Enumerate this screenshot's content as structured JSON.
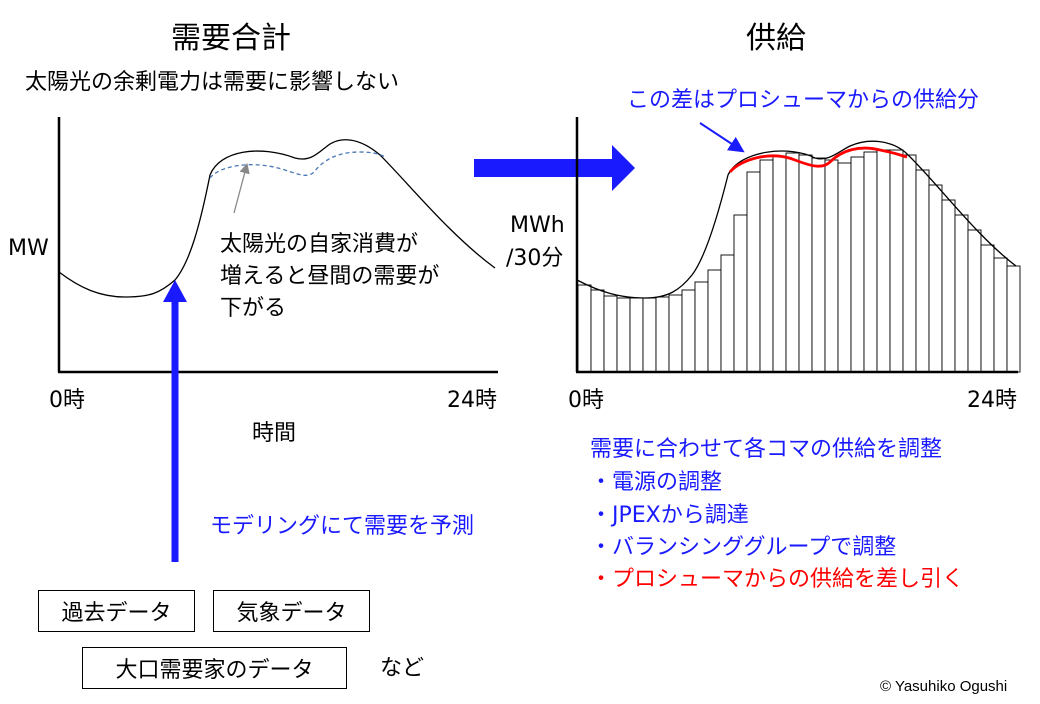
{
  "left_panel": {
    "title": "需要合計",
    "subtitle": "太陽光の余剰電力は需要に影響しない",
    "y_label": "MW",
    "x_start": "0時",
    "x_end": "24時",
    "x_label": "時間",
    "annotation": [
      "太陽光の自家消費が",
      "増えると昼間の需要が",
      "下がる"
    ]
  },
  "right_panel": {
    "title": "供給",
    "y_label_line1": "MWh",
    "y_label_line2": "/30分",
    "x_start": "0時",
    "x_end": "24時",
    "annotation": "この差はプロシューマからの供給分"
  },
  "forecast_label": "モデリングにて需要を予測",
  "data_sources": [
    "過去データ",
    "気象データ",
    "大口需要家のデータ"
  ],
  "data_sources_suffix": "など",
  "supply_notes": {
    "heading": "需要に合わせて各コマの供給を調整",
    "items": [
      "・電源の調整",
      "・JPEXから調達",
      "・バランシンググループで調整"
    ],
    "highlight": "・プロシューマからの供給を差し引く"
  },
  "copyright": "© Yasuhiko Ogushi",
  "colors": {
    "accent_blue": "#1a1aff",
    "highlight_red": "#ff0000",
    "dashed_line": "#4a78b5"
  }
}
